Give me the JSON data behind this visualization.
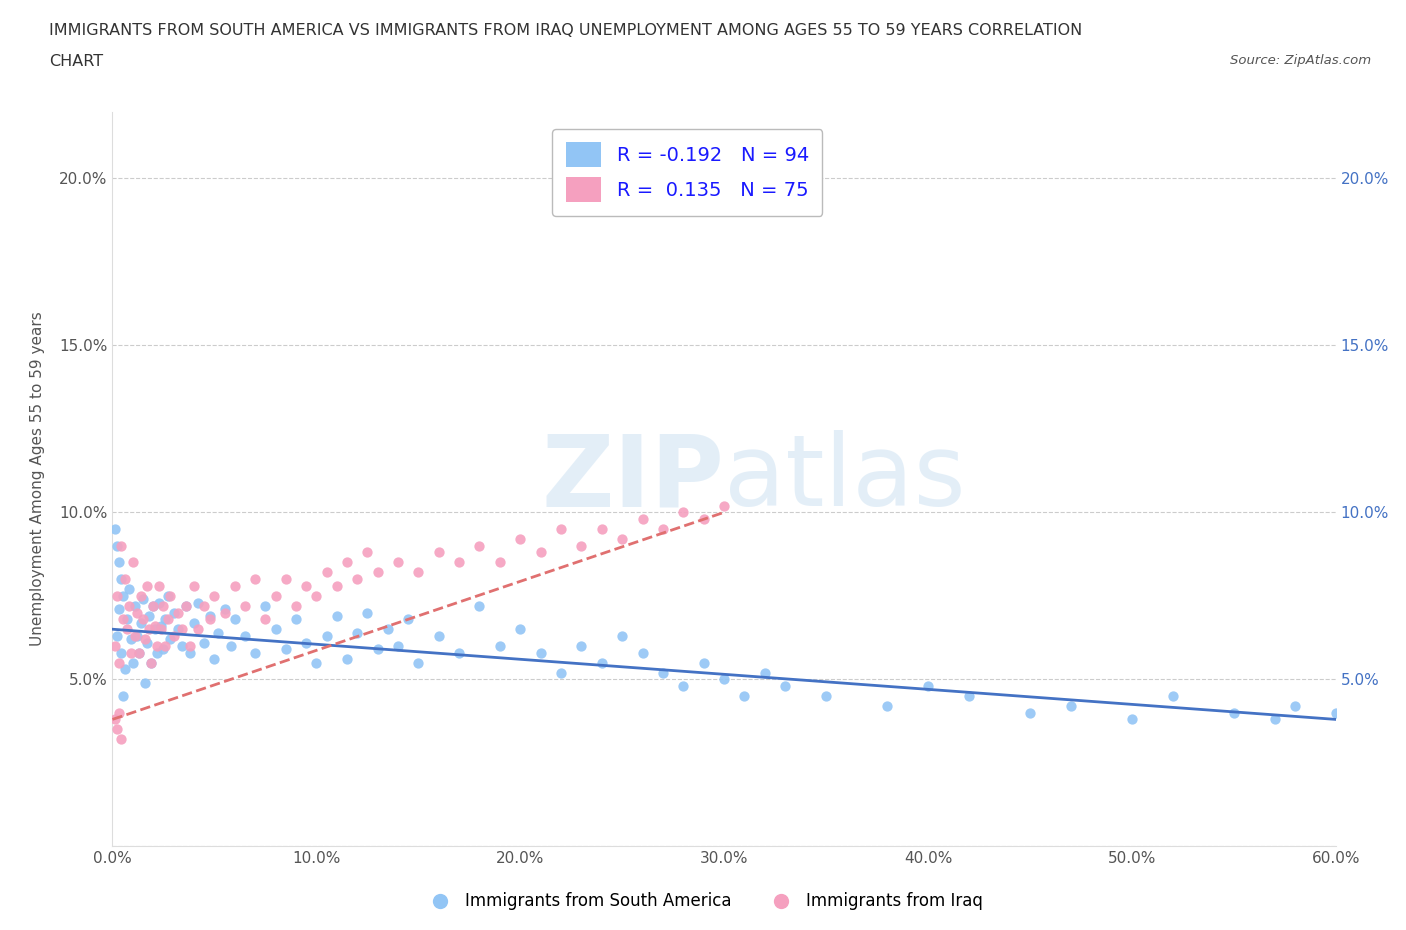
{
  "title_line1": "IMMIGRANTS FROM SOUTH AMERICA VS IMMIGRANTS FROM IRAQ UNEMPLOYMENT AMONG AGES 55 TO 59 YEARS CORRELATION",
  "title_line2": "CHART",
  "source_text": "Source: ZipAtlas.com",
  "ylabel": "Unemployment Among Ages 55 to 59 years",
  "xlim": [
    0.0,
    0.6
  ],
  "ylim": [
    0.0,
    0.22
  ],
  "xticks": [
    0.0,
    0.1,
    0.2,
    0.3,
    0.4,
    0.5,
    0.6
  ],
  "xticklabels": [
    "0.0%",
    "10.0%",
    "20.0%",
    "30.0%",
    "40.0%",
    "50.0%",
    "60.0%"
  ],
  "yticks": [
    0.0,
    0.05,
    0.1,
    0.15,
    0.2
  ],
  "yticklabels": [
    "",
    "5.0%",
    "10.0%",
    "15.0%",
    "20.0%"
  ],
  "right_yticks": [
    0.05,
    0.1,
    0.15,
    0.2
  ],
  "right_yticklabels": [
    "5.0%",
    "10.0%",
    "15.0%",
    "20.0%"
  ],
  "color_south_america": "#92C5F5",
  "color_iraq": "#F5A0BF",
  "line_color_south_america": "#4472C4",
  "line_color_iraq": "#E07070",
  "background_color": "#FFFFFF",
  "watermark_text": "ZIPatlas",
  "legend_label1": "R = -0.192   N = 94",
  "legend_label2": "R =  0.135   N = 75",
  "sa_trend_x0": 0.0,
  "sa_trend_y0": 0.065,
  "sa_trend_x1": 0.6,
  "sa_trend_y1": 0.038,
  "iq_trend_x0": 0.0,
  "iq_trend_y0": 0.038,
  "iq_trend_x1": 0.3,
  "iq_trend_y1": 0.1,
  "sa_x": [
    0.002,
    0.003,
    0.004,
    0.005,
    0.006,
    0.007,
    0.008,
    0.009,
    0.01,
    0.011,
    0.012,
    0.013,
    0.014,
    0.015,
    0.016,
    0.017,
    0.018,
    0.019,
    0.02,
    0.021,
    0.022,
    0.023,
    0.024,
    0.025,
    0.026,
    0.027,
    0.028,
    0.03,
    0.032,
    0.034,
    0.036,
    0.038,
    0.04,
    0.042,
    0.045,
    0.048,
    0.05,
    0.052,
    0.055,
    0.058,
    0.06,
    0.065,
    0.07,
    0.075,
    0.08,
    0.085,
    0.09,
    0.095,
    0.1,
    0.105,
    0.11,
    0.115,
    0.12,
    0.125,
    0.13,
    0.135,
    0.14,
    0.145,
    0.15,
    0.16,
    0.17,
    0.18,
    0.19,
    0.2,
    0.21,
    0.22,
    0.23,
    0.24,
    0.25,
    0.26,
    0.27,
    0.28,
    0.29,
    0.3,
    0.31,
    0.32,
    0.33,
    0.35,
    0.38,
    0.4,
    0.42,
    0.45,
    0.47,
    0.5,
    0.52,
    0.55,
    0.57,
    0.58,
    0.6,
    0.001,
    0.002,
    0.003,
    0.004,
    0.005
  ],
  "sa_y": [
    0.063,
    0.071,
    0.058,
    0.045,
    0.053,
    0.068,
    0.077,
    0.062,
    0.055,
    0.072,
    0.063,
    0.058,
    0.067,
    0.074,
    0.049,
    0.061,
    0.069,
    0.055,
    0.072,
    0.065,
    0.058,
    0.073,
    0.066,
    0.059,
    0.068,
    0.075,
    0.062,
    0.07,
    0.065,
    0.06,
    0.072,
    0.058,
    0.067,
    0.073,
    0.061,
    0.069,
    0.056,
    0.064,
    0.071,
    0.06,
    0.068,
    0.063,
    0.058,
    0.072,
    0.065,
    0.059,
    0.068,
    0.061,
    0.055,
    0.063,
    0.069,
    0.056,
    0.064,
    0.07,
    0.059,
    0.065,
    0.06,
    0.068,
    0.055,
    0.063,
    0.058,
    0.072,
    0.06,
    0.065,
    0.058,
    0.052,
    0.06,
    0.055,
    0.063,
    0.058,
    0.052,
    0.048,
    0.055,
    0.05,
    0.045,
    0.052,
    0.048,
    0.045,
    0.042,
    0.048,
    0.045,
    0.04,
    0.042,
    0.038,
    0.045,
    0.04,
    0.038,
    0.042,
    0.04,
    0.095,
    0.09,
    0.085,
    0.08,
    0.075
  ],
  "iq_x": [
    0.001,
    0.002,
    0.003,
    0.004,
    0.005,
    0.006,
    0.007,
    0.008,
    0.009,
    0.01,
    0.011,
    0.012,
    0.013,
    0.014,
    0.015,
    0.016,
    0.017,
    0.018,
    0.019,
    0.02,
    0.021,
    0.022,
    0.023,
    0.024,
    0.025,
    0.026,
    0.027,
    0.028,
    0.03,
    0.032,
    0.034,
    0.036,
    0.038,
    0.04,
    0.042,
    0.045,
    0.048,
    0.05,
    0.055,
    0.06,
    0.065,
    0.07,
    0.075,
    0.08,
    0.085,
    0.09,
    0.095,
    0.1,
    0.105,
    0.11,
    0.115,
    0.12,
    0.125,
    0.13,
    0.14,
    0.15,
    0.16,
    0.17,
    0.18,
    0.19,
    0.2,
    0.21,
    0.22,
    0.23,
    0.24,
    0.25,
    0.26,
    0.27,
    0.28,
    0.29,
    0.3,
    0.001,
    0.002,
    0.003,
    0.004
  ],
  "iq_y": [
    0.06,
    0.075,
    0.055,
    0.09,
    0.068,
    0.08,
    0.065,
    0.072,
    0.058,
    0.085,
    0.063,
    0.07,
    0.058,
    0.075,
    0.068,
    0.062,
    0.078,
    0.065,
    0.055,
    0.072,
    0.066,
    0.06,
    0.078,
    0.065,
    0.072,
    0.06,
    0.068,
    0.075,
    0.063,
    0.07,
    0.065,
    0.072,
    0.06,
    0.078,
    0.065,
    0.072,
    0.068,
    0.075,
    0.07,
    0.078,
    0.072,
    0.08,
    0.068,
    0.075,
    0.08,
    0.072,
    0.078,
    0.075,
    0.082,
    0.078,
    0.085,
    0.08,
    0.088,
    0.082,
    0.085,
    0.082,
    0.088,
    0.085,
    0.09,
    0.085,
    0.092,
    0.088,
    0.095,
    0.09,
    0.095,
    0.092,
    0.098,
    0.095,
    0.1,
    0.098,
    0.102,
    0.038,
    0.035,
    0.04,
    0.032
  ]
}
